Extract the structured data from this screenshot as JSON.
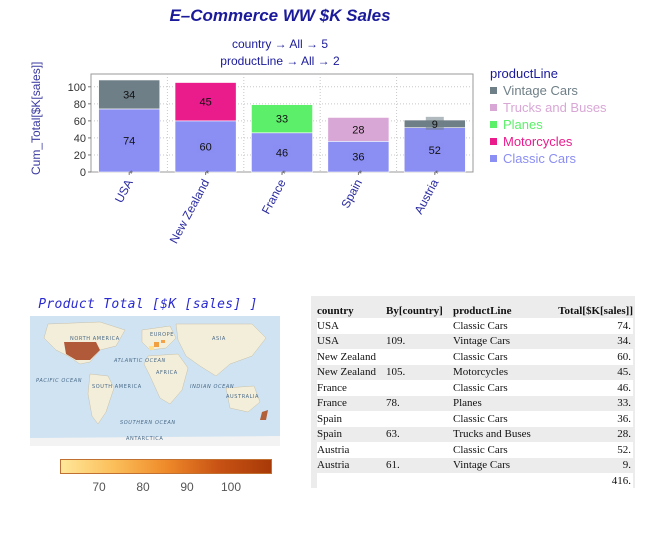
{
  "chart_data": [
    {
      "type": "bar",
      "stacked": true,
      "title": "E–Commerce WW $K Sales",
      "subtitle_lines": [
        "country → All → 5",
        "productLine → All → 2"
      ],
      "ylabel": "Cum_Total[$K[sales]]",
      "ylim": [
        0,
        115
      ],
      "yticks": [
        0,
        20,
        40,
        60,
        80,
        100
      ],
      "categories": [
        "USA",
        "New Zealand",
        "France",
        "Spain",
        "Austria"
      ],
      "category_marker": "*",
      "grid": true,
      "legend_title": "productLine",
      "legend_position": "right",
      "legend": [
        {
          "name": "Vintage Cars",
          "color": "#6f7f87"
        },
        {
          "name": "Trucks and Buses",
          "color": "#d9a7d6"
        },
        {
          "name": "Planes",
          "color": "#5cf06a"
        },
        {
          "name": "Motorcycles",
          "color": "#ea1c8c"
        },
        {
          "name": "Classic Cars",
          "color": "#8b8ef2"
        }
      ],
      "bars": [
        {
          "category": "USA",
          "segments": [
            {
              "product": "Classic Cars",
              "value": 74,
              "color": "#8b8ef2"
            },
            {
              "product": "Vintage Cars",
              "value": 34,
              "color": "#6f7f87"
            }
          ]
        },
        {
          "category": "New Zealand",
          "segments": [
            {
              "product": "Classic Cars",
              "value": 60,
              "color": "#8b8ef2"
            },
            {
              "product": "Motorcycles",
              "value": 45,
              "color": "#ea1c8c"
            }
          ]
        },
        {
          "category": "France",
          "segments": [
            {
              "product": "Classic Cars",
              "value": 46,
              "color": "#8b8ef2"
            },
            {
              "product": "Planes",
              "value": 33,
              "color": "#5cf06a"
            }
          ]
        },
        {
          "category": "Spain",
          "segments": [
            {
              "product": "Classic Cars",
              "value": 36,
              "color": "#8b8ef2"
            },
            {
              "product": "Trucks and Buses",
              "value": 28,
              "color": "#d9a7d6"
            }
          ]
        },
        {
          "category": "Austria",
          "segments": [
            {
              "product": "Classic Cars",
              "value": 52,
              "color": "#8b8ef2"
            },
            {
              "product": "Vintage Cars",
              "value": 9,
              "color": "#6f7f87"
            }
          ]
        }
      ]
    },
    {
      "type": "map",
      "title": "Product Total [$K [sales] ]",
      "colorbar_ticks": [
        "70",
        "80",
        "90",
        "100"
      ],
      "colorbar_range": [
        61,
        109
      ],
      "map_labels": [
        "NORTH AMERICA",
        "EUROPE",
        "ASIA",
        "ATLANTIC OCEAN",
        "AFRICA",
        "PACIFIC OCEAN",
        "SOUTH AMERICA",
        "INDIAN OCEAN",
        "AUSTRALIA",
        "SOUTHERN OCEAN",
        "ANTARCTICA"
      ]
    },
    {
      "type": "table",
      "columns": [
        "country",
        "By[country]",
        "productLine",
        "Total[$K[sales]]"
      ],
      "rows": [
        [
          "USA",
          "",
          "Classic Cars",
          "74."
        ],
        [
          "USA",
          "109.",
          "Vintage Cars",
          "34."
        ],
        [
          "New Zealand",
          "",
          "Classic Cars",
          "60."
        ],
        [
          "New Zealand",
          "105.",
          "Motorcycles",
          "45."
        ],
        [
          "France",
          "",
          "Classic Cars",
          "46."
        ],
        [
          "France",
          "78.",
          "Planes",
          "33."
        ],
        [
          "Spain",
          "",
          "Classic Cars",
          "36."
        ],
        [
          "Spain",
          "63.",
          "Trucks and Buses",
          "28."
        ],
        [
          "Austria",
          "",
          "Classic Cars",
          "52."
        ],
        [
          "Austria",
          "61.",
          "Vintage Cars",
          "9."
        ],
        [
          "",
          "",
          "",
          "416."
        ]
      ]
    }
  ]
}
